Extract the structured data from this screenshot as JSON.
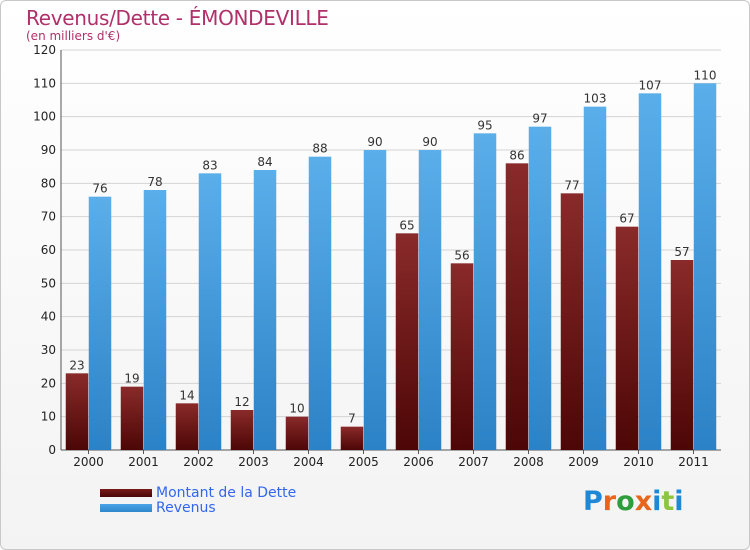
{
  "title": "Revenus/Dette - ÉMONDEVILLE",
  "subtitle": "(en milliers d'€)",
  "colors": {
    "dette": "#7a1a1a",
    "revenus": "#4aa3e6",
    "grid": "#d4d4d4",
    "axis_text": "#222222",
    "legend_text": "#3366ee"
  },
  "logo": {
    "text": "Proxiti",
    "letter_colors": [
      "#1e88d6",
      "#e8661b",
      "#2e9e3c",
      "#e8661b",
      "#1e88d6",
      "#8cc63f",
      "#1e88d6"
    ]
  },
  "chart_data": {
    "type": "bar",
    "title": "Revenus/Dette - ÉMONDEVILLE",
    "subtitle": "(en milliers d'€)",
    "categories": [
      "2000",
      "2001",
      "2002",
      "2003",
      "2004",
      "2005",
      "2006",
      "2007",
      "2008",
      "2009",
      "2010",
      "2011"
    ],
    "series": [
      {
        "name": "Montant de la Dette",
        "color": "#7a1a1a",
        "values": [
          23,
          19,
          14,
          12,
          10,
          7,
          65,
          56,
          86,
          77,
          67,
          57
        ]
      },
      {
        "name": "Revenus",
        "color": "#4aa3e6",
        "values": [
          76,
          78,
          83,
          84,
          88,
          90,
          90,
          95,
          97,
          103,
          107,
          110
        ]
      }
    ],
    "ylim": [
      0,
      120
    ],
    "yticks": [
      0,
      10,
      20,
      30,
      40,
      50,
      60,
      70,
      80,
      90,
      100,
      110,
      120
    ],
    "grid": true,
    "legend_position": "bottom-left"
  }
}
